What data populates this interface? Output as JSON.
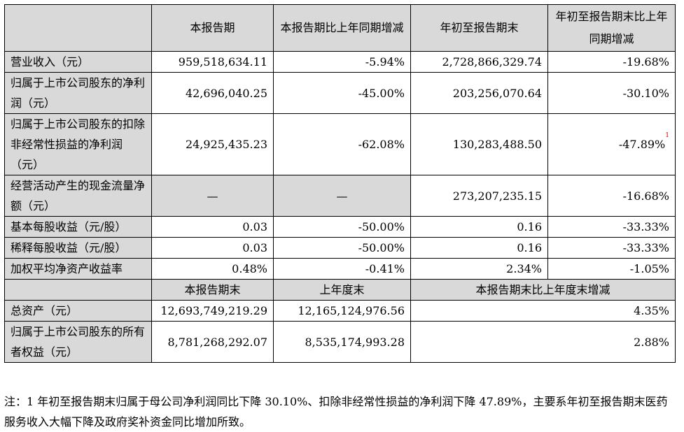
{
  "header": {
    "col1": "本报告期",
    "col2": "本报告期比上年同期增减",
    "col3": "年初至报告期末",
    "col4": "年初至报告期末比上年同期增减"
  },
  "rows": [
    {
      "label": "营业收入（元）",
      "v1": "959,518,634.11",
      "v2": "-5.94%",
      "v3": "2,728,866,329.74",
      "v4": "-19.68%"
    },
    {
      "label": "归属于上市公司股东的净利润（元）",
      "v1": "42,696,040.25",
      "v2": "-45.00%",
      "v3": "203,256,070.64",
      "v4": "-30.10%"
    },
    {
      "label": "归属于上市公司股东的扣除非经常性损益的净利润（元）",
      "v1": "24,925,435.23",
      "v2": "-62.08%",
      "v3": "130,283,488.50",
      "v4": "-47.89%",
      "v4_footnote": "1"
    },
    {
      "label": "经营活动产生的现金流量净额（元）",
      "v1": "—",
      "v2": "—",
      "v3": "273,207,235.15",
      "v4": "-16.68%"
    },
    {
      "label": "基本每股收益（元/股）",
      "v1": "0.03",
      "v2": "-50.00%",
      "v3": "0.16",
      "v4": "-33.33%"
    },
    {
      "label": "稀释每股收益（元/股）",
      "v1": "0.03",
      "v2": "-50.00%",
      "v3": "0.16",
      "v4": "-33.33%"
    },
    {
      "label": "加权平均净资产收益率",
      "v1": "0.48%",
      "v2": "-0.41%",
      "v3": "2.34%",
      "v4": "-1.05%"
    }
  ],
  "header2": {
    "col1": "本报告期末",
    "col2": "上年度末",
    "col3": "本报告期末比上年度末增减"
  },
  "rows2": [
    {
      "label": "总资产（元）",
      "v1": "12,693,749,219.29",
      "v2": "12,165,124,976.56",
      "v3": "4.35%"
    },
    {
      "label": "归属于上市公司股东的所有者权益（元）",
      "v1": "8,781,268,292.07",
      "v2": "8,535,174,993.28",
      "v3": "2.88%"
    }
  ],
  "note": "注：1 年初至报告期末归属于母公司净利润同比下降 30.10%、扣除非经常性损益的净利润下降 47.89%，主要系年初至报告期末医药服务收入大幅下降及政府奖补资金同比增加所致。"
}
